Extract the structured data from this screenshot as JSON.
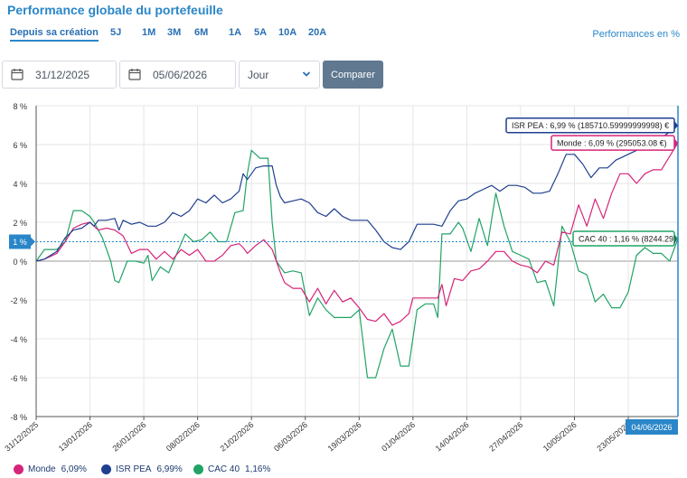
{
  "header": {
    "title": "Performance globale du portefeuille",
    "performance_mode": "Performances en %"
  },
  "periods": [
    {
      "label": "Depuis sa création",
      "active": true
    },
    {
      "label": "5J"
    },
    {
      "label": "1M"
    },
    {
      "label": "3M"
    },
    {
      "label": "6M"
    },
    {
      "label": "1A"
    },
    {
      "label": "5A"
    },
    {
      "label": "10A"
    },
    {
      "label": "20A"
    }
  ],
  "controls": {
    "start_date": "31/12/2025",
    "end_date": "05/06/2026",
    "granularity": "Jour",
    "compare_label": "Comparer"
  },
  "colors": {
    "monde": "#d6247a",
    "isr": "#1f3f8f",
    "cac": "#21a366",
    "accent": "#2a86c8",
    "axis": "#333333"
  },
  "chart_data": {
    "type": "line",
    "xlabel": "",
    "ylabel": "",
    "ylim": [
      -8,
      8
    ],
    "yticks": [
      "8 %",
      "6 %",
      "4 %",
      "2 %",
      "0 %",
      "-2 %",
      "-4 %",
      "-6 %",
      "-8 %"
    ],
    "xtick_labels": [
      "31/12/2025",
      "13/01/2026",
      "26/01/2026",
      "08/02/2026",
      "21/02/2026",
      "06/03/2026",
      "19/03/2026",
      "01/04/2026",
      "14/04/2026",
      "27/04/2026",
      "10/05/2026",
      "23/05/2026"
    ],
    "xlim": [
      "2025-12-31",
      "2026-06-04"
    ],
    "crosshair": {
      "date_label": "04/06/2026",
      "value_label": "1 %"
    },
    "grid": true,
    "legend_position": "bottom-left",
    "series": [
      {
        "name": "ISR PEA",
        "legend_value": "6,99%",
        "tooltip": "ISR PEA : 6,99 % (185710.59999999998) €",
        "points": [
          [
            "2025-12-31",
            0.0
          ],
          [
            "2026-01-02",
            0.1
          ],
          [
            "2026-01-05",
            0.5
          ],
          [
            "2026-01-07",
            1.2
          ],
          [
            "2026-01-09",
            1.6
          ],
          [
            "2026-01-11",
            1.7
          ],
          [
            "2026-01-13",
            2.0
          ],
          [
            "2026-01-14",
            1.8
          ],
          [
            "2026-01-15",
            2.1
          ],
          [
            "2026-01-17",
            2.1
          ],
          [
            "2026-01-19",
            2.2
          ],
          [
            "2026-01-20",
            1.6
          ],
          [
            "2026-01-21",
            2.1
          ],
          [
            "2026-01-23",
            1.9
          ],
          [
            "2026-01-25",
            2.0
          ],
          [
            "2026-01-27",
            1.8
          ],
          [
            "2026-01-29",
            1.8
          ],
          [
            "2026-01-31",
            2.0
          ],
          [
            "2026-02-02",
            2.5
          ],
          [
            "2026-02-04",
            2.3
          ],
          [
            "2026-02-06",
            2.6
          ],
          [
            "2026-02-08",
            3.2
          ],
          [
            "2026-02-10",
            3.0
          ],
          [
            "2026-02-12",
            3.4
          ],
          [
            "2026-02-14",
            3.0
          ],
          [
            "2026-02-16",
            3.2
          ],
          [
            "2026-02-18",
            3.6
          ],
          [
            "2026-02-19",
            4.5
          ],
          [
            "2026-02-20",
            4.2
          ],
          [
            "2026-02-22",
            4.8
          ],
          [
            "2026-02-24",
            4.9
          ],
          [
            "2026-02-26",
            4.9
          ],
          [
            "2026-02-27",
            3.9
          ],
          [
            "2026-02-28",
            3.3
          ],
          [
            "2026-03-01",
            3.0
          ],
          [
            "2026-03-03",
            3.1
          ],
          [
            "2026-03-05",
            3.2
          ],
          [
            "2026-03-07",
            3.0
          ],
          [
            "2026-03-09",
            2.5
          ],
          [
            "2026-03-11",
            2.3
          ],
          [
            "2026-03-13",
            2.7
          ],
          [
            "2026-03-15",
            2.3
          ],
          [
            "2026-03-17",
            2.1
          ],
          [
            "2026-03-19",
            2.1
          ],
          [
            "2026-03-21",
            2.1
          ],
          [
            "2026-03-23",
            1.6
          ],
          [
            "2026-03-25",
            1.0
          ],
          [
            "2026-03-27",
            0.7
          ],
          [
            "2026-03-29",
            0.6
          ],
          [
            "2026-03-31",
            1.0
          ],
          [
            "2026-04-02",
            1.9
          ],
          [
            "2026-04-04",
            1.9
          ],
          [
            "2026-04-06",
            1.9
          ],
          [
            "2026-04-08",
            1.8
          ],
          [
            "2026-04-10",
            2.6
          ],
          [
            "2026-04-12",
            3.1
          ],
          [
            "2026-04-14",
            3.2
          ],
          [
            "2026-04-16",
            3.5
          ],
          [
            "2026-04-18",
            3.7
          ],
          [
            "2026-04-20",
            3.9
          ],
          [
            "2026-04-22",
            3.6
          ],
          [
            "2026-04-24",
            3.9
          ],
          [
            "2026-04-26",
            3.9
          ],
          [
            "2026-04-28",
            3.8
          ],
          [
            "2026-04-30",
            3.5
          ],
          [
            "2026-05-02",
            3.5
          ],
          [
            "2026-05-04",
            3.6
          ],
          [
            "2026-05-06",
            4.5
          ],
          [
            "2026-05-08",
            5.5
          ],
          [
            "2026-05-10",
            5.5
          ],
          [
            "2026-05-12",
            5.0
          ],
          [
            "2026-05-14",
            4.3
          ],
          [
            "2026-05-16",
            4.8
          ],
          [
            "2026-05-18",
            4.8
          ],
          [
            "2026-05-20",
            5.2
          ],
          [
            "2026-05-22",
            5.4
          ],
          [
            "2026-05-24",
            5.6
          ],
          [
            "2026-05-26",
            5.8
          ],
          [
            "2026-05-28",
            5.8
          ],
          [
            "2026-05-30",
            6.2
          ],
          [
            "2026-06-01",
            6.5
          ],
          [
            "2026-06-03",
            6.8
          ],
          [
            "2026-06-04",
            6.99
          ]
        ]
      },
      {
        "name": "Monde",
        "legend_value": "6,09%",
        "tooltip": "Monde : 6,09 % (295053.08 €)",
        "points": [
          [
            "2025-12-31",
            0.0
          ],
          [
            "2026-01-02",
            0.1
          ],
          [
            "2026-01-05",
            0.4
          ],
          [
            "2026-01-07",
            1.0
          ],
          [
            "2026-01-09",
            1.7
          ],
          [
            "2026-01-11",
            1.9
          ],
          [
            "2026-01-13",
            2.0
          ],
          [
            "2026-01-15",
            1.6
          ],
          [
            "2026-01-17",
            1.7
          ],
          [
            "2026-01-19",
            1.6
          ],
          [
            "2026-01-21",
            1.3
          ],
          [
            "2026-01-23",
            0.4
          ],
          [
            "2026-01-25",
            0.6
          ],
          [
            "2026-01-27",
            0.6
          ],
          [
            "2026-01-29",
            0.1
          ],
          [
            "2026-01-31",
            0.5
          ],
          [
            "2026-02-02",
            0.1
          ],
          [
            "2026-02-04",
            0.6
          ],
          [
            "2026-02-06",
            0.3
          ],
          [
            "2026-02-08",
            0.6
          ],
          [
            "2026-02-10",
            0.0
          ],
          [
            "2026-02-12",
            0.0
          ],
          [
            "2026-02-14",
            0.3
          ],
          [
            "2026-02-16",
            0.8
          ],
          [
            "2026-02-18",
            0.9
          ],
          [
            "2026-02-19",
            0.7
          ],
          [
            "2026-02-20",
            0.4
          ],
          [
            "2026-02-22",
            0.8
          ],
          [
            "2026-02-24",
            1.1
          ],
          [
            "2026-02-26",
            0.6
          ],
          [
            "2026-02-28",
            -0.6
          ],
          [
            "2026-03-01",
            -1.1
          ],
          [
            "2026-03-03",
            -1.4
          ],
          [
            "2026-03-05",
            -1.4
          ],
          [
            "2026-03-07",
            -2.1
          ],
          [
            "2026-03-09",
            -1.4
          ],
          [
            "2026-03-11",
            -2.2
          ],
          [
            "2026-03-13",
            -1.5
          ],
          [
            "2026-03-15",
            -2.1
          ],
          [
            "2026-03-17",
            -1.9
          ],
          [
            "2026-03-19",
            -2.4
          ],
          [
            "2026-03-21",
            -3.0
          ],
          [
            "2026-03-23",
            -3.1
          ],
          [
            "2026-03-25",
            -2.7
          ],
          [
            "2026-03-27",
            -3.3
          ],
          [
            "2026-03-29",
            -3.1
          ],
          [
            "2026-03-31",
            -2.7
          ],
          [
            "2026-04-01",
            -1.9
          ],
          [
            "2026-04-04",
            -1.9
          ],
          [
            "2026-04-07",
            -1.9
          ],
          [
            "2026-04-08",
            -1.2
          ],
          [
            "2026-04-09",
            -2.3
          ],
          [
            "2026-04-11",
            -0.9
          ],
          [
            "2026-04-13",
            -1.0
          ],
          [
            "2026-04-15",
            -0.5
          ],
          [
            "2026-04-17",
            -0.4
          ],
          [
            "2026-04-19",
            0.0
          ],
          [
            "2026-04-21",
            0.5
          ],
          [
            "2026-04-23",
            0.5
          ],
          [
            "2026-04-25",
            0.0
          ],
          [
            "2026-04-27",
            -0.2
          ],
          [
            "2026-04-29",
            -0.3
          ],
          [
            "2026-05-01",
            -0.6
          ],
          [
            "2026-05-03",
            0.0
          ],
          [
            "2026-05-05",
            -0.2
          ],
          [
            "2026-05-07",
            1.5
          ],
          [
            "2026-05-09",
            1.4
          ],
          [
            "2026-05-11",
            2.9
          ],
          [
            "2026-05-13",
            1.8
          ],
          [
            "2026-05-15",
            3.2
          ],
          [
            "2026-05-17",
            2.2
          ],
          [
            "2026-05-19",
            3.5
          ],
          [
            "2026-05-21",
            4.5
          ],
          [
            "2026-05-23",
            4.5
          ],
          [
            "2026-05-25",
            4.0
          ],
          [
            "2026-05-27",
            4.5
          ],
          [
            "2026-05-29",
            4.7
          ],
          [
            "2026-05-31",
            4.7
          ],
          [
            "2026-06-02",
            5.4
          ],
          [
            "2026-06-04",
            6.09
          ]
        ]
      },
      {
        "name": "CAC 40",
        "legend_value": "1,16%",
        "tooltip": "CAC 40 : 1,16 % (8244.29)",
        "points": [
          [
            "2025-12-31",
            0.0
          ],
          [
            "2026-01-02",
            0.6
          ],
          [
            "2026-01-05",
            0.6
          ],
          [
            "2026-01-07",
            1.0
          ],
          [
            "2026-01-09",
            2.6
          ],
          [
            "2026-01-11",
            2.6
          ],
          [
            "2026-01-13",
            2.3
          ],
          [
            "2026-01-14",
            2.0
          ],
          [
            "2026-01-16",
            1.2
          ],
          [
            "2026-01-18",
            0.0
          ],
          [
            "2026-01-19",
            -1.0
          ],
          [
            "2026-01-20",
            -1.1
          ],
          [
            "2026-01-22",
            0.0
          ],
          [
            "2026-01-24",
            0.0
          ],
          [
            "2026-01-26",
            -0.1
          ],
          [
            "2026-01-27",
            0.3
          ],
          [
            "2026-01-28",
            -1.0
          ],
          [
            "2026-01-30",
            -0.3
          ],
          [
            "2026-02-01",
            -0.6
          ],
          [
            "2026-02-03",
            0.4
          ],
          [
            "2026-02-05",
            1.4
          ],
          [
            "2026-02-07",
            1.0
          ],
          [
            "2026-02-09",
            1.1
          ],
          [
            "2026-02-11",
            1.5
          ],
          [
            "2026-02-13",
            1.0
          ],
          [
            "2026-02-15",
            1.0
          ],
          [
            "2026-02-17",
            2.5
          ],
          [
            "2026-02-19",
            2.6
          ],
          [
            "2026-02-20",
            4.5
          ],
          [
            "2026-02-21",
            5.7
          ],
          [
            "2026-02-23",
            5.3
          ],
          [
            "2026-02-25",
            5.3
          ],
          [
            "2026-02-26",
            2.0
          ],
          [
            "2026-02-27",
            0.0
          ],
          [
            "2026-03-01",
            -0.6
          ],
          [
            "2026-03-03",
            -0.5
          ],
          [
            "2026-03-05",
            -0.6
          ],
          [
            "2026-03-07",
            -2.8
          ],
          [
            "2026-03-09",
            -1.9
          ],
          [
            "2026-03-11",
            -2.5
          ],
          [
            "2026-03-13",
            -2.9
          ],
          [
            "2026-03-15",
            -2.9
          ],
          [
            "2026-03-17",
            -2.9
          ],
          [
            "2026-03-19",
            -2.5
          ],
          [
            "2026-03-21",
            -6.0
          ],
          [
            "2026-03-23",
            -6.0
          ],
          [
            "2026-03-25",
            -4.5
          ],
          [
            "2026-03-27",
            -3.5
          ],
          [
            "2026-03-29",
            -5.4
          ],
          [
            "2026-03-31",
            -5.4
          ],
          [
            "2026-04-02",
            -2.5
          ],
          [
            "2026-04-04",
            -2.2
          ],
          [
            "2026-04-06",
            -2.2
          ],
          [
            "2026-04-07",
            -2.9
          ],
          [
            "2026-04-08",
            1.4
          ],
          [
            "2026-04-10",
            1.4
          ],
          [
            "2026-04-12",
            2.0
          ],
          [
            "2026-04-13",
            1.7
          ],
          [
            "2026-04-15",
            0.5
          ],
          [
            "2026-04-17",
            2.2
          ],
          [
            "2026-04-19",
            0.8
          ],
          [
            "2026-04-21",
            3.5
          ],
          [
            "2026-04-23",
            1.8
          ],
          [
            "2026-04-25",
            0.5
          ],
          [
            "2026-04-27",
            0.3
          ],
          [
            "2026-04-29",
            0.1
          ],
          [
            "2026-05-01",
            -1.1
          ],
          [
            "2026-05-03",
            -1.0
          ],
          [
            "2026-05-05",
            -2.3
          ],
          [
            "2026-05-07",
            1.8
          ],
          [
            "2026-05-09",
            1.0
          ],
          [
            "2026-05-11",
            -0.5
          ],
          [
            "2026-05-13",
            -0.7
          ],
          [
            "2026-05-15",
            -2.1
          ],
          [
            "2026-05-17",
            -1.7
          ],
          [
            "2026-05-19",
            -2.4
          ],
          [
            "2026-05-21",
            -2.4
          ],
          [
            "2026-05-23",
            -1.6
          ],
          [
            "2026-05-25",
            0.3
          ],
          [
            "2026-05-27",
            0.7
          ],
          [
            "2026-05-29",
            0.4
          ],
          [
            "2026-05-31",
            0.4
          ],
          [
            "2026-06-02",
            0.0
          ],
          [
            "2026-06-04",
            1.16
          ]
        ]
      }
    ]
  }
}
